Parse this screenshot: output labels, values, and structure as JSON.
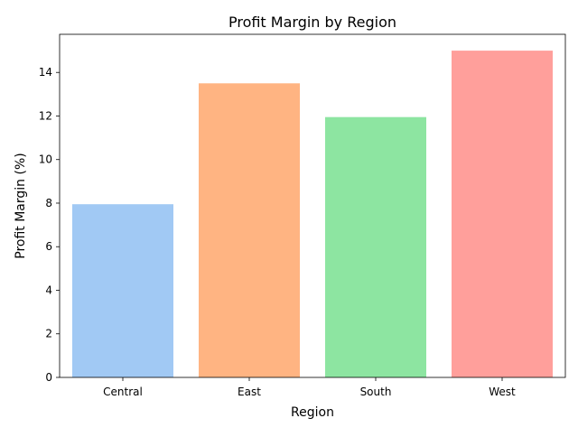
{
  "chart_data": {
    "type": "bar",
    "title": "Profit Margin by Region",
    "xlabel": "Region",
    "ylabel": "Profit Margin (%)",
    "categories": [
      "Central",
      "East",
      "South",
      "West"
    ],
    "values": [
      7.95,
      13.5,
      11.95,
      15.0
    ],
    "ylim": [
      0,
      15.75
    ],
    "yticks": [
      0,
      2,
      4,
      6,
      8,
      10,
      12,
      14
    ],
    "colors": [
      "#a1c9f4",
      "#ffb482",
      "#8de5a1",
      "#ff9f9b"
    ],
    "grid": false,
    "legend": "none"
  }
}
